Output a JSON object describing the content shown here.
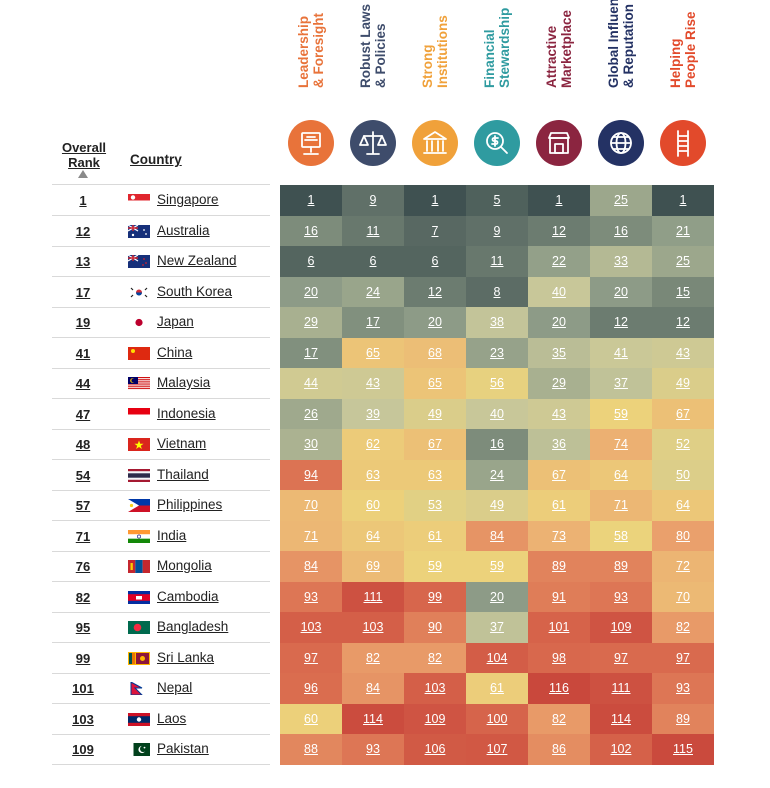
{
  "headers": {
    "rank": "Overall\nRank",
    "country": "Country"
  },
  "pillars": [
    {
      "label": "Leadership\n& Foresight",
      "color": "#e8733a",
      "icon": "leadership-icon"
    },
    {
      "label": "Robust Laws\n& Policies",
      "color": "#3e4c6b",
      "icon": "scales-icon"
    },
    {
      "label": "Strong\nInstitutions",
      "color": "#f0a13a",
      "icon": "institution-building-icon"
    },
    {
      "label": "Financial\nStewardship",
      "color": "#2f9ba0",
      "icon": "money-magnifier-icon"
    },
    {
      "label": "Attractive\nMarketplace",
      "color": "#8b2540",
      "icon": "storefront-icon"
    },
    {
      "label": "Global Influence\n& Reputation",
      "color": "#243264",
      "icon": "globe-icon"
    },
    {
      "label": "Helping\nPeople Rise",
      "color": "#e24a2b",
      "icon": "ladder-icon"
    }
  ],
  "chart_data": {
    "type": "heatmap",
    "columns": [
      "Leadership & Foresight",
      "Robust Laws & Policies",
      "Strong Institutions",
      "Financial Stewardship",
      "Attractive Marketplace",
      "Global Influence & Reputation",
      "Helping People Rise"
    ],
    "rows": [
      {
        "rank": "1",
        "country": "Singapore",
        "flag": "sg",
        "values": [
          1,
          9,
          1,
          5,
          1,
          25,
          1
        ]
      },
      {
        "rank": "12",
        "country": "Australia",
        "flag": "au",
        "values": [
          16,
          11,
          7,
          9,
          12,
          16,
          21
        ]
      },
      {
        "rank": "13",
        "country": "New Zealand",
        "flag": "nz",
        "values": [
          6,
          6,
          6,
          11,
          22,
          33,
          25
        ]
      },
      {
        "rank": "17",
        "country": "South Korea",
        "flag": "kr",
        "values": [
          20,
          24,
          12,
          8,
          40,
          20,
          15
        ]
      },
      {
        "rank": "19",
        "country": "Japan",
        "flag": "jp",
        "values": [
          29,
          17,
          20,
          38,
          20,
          12,
          12
        ]
      },
      {
        "rank": "41",
        "country": "China",
        "flag": "cn",
        "values": [
          17,
          65,
          68,
          23,
          35,
          41,
          43
        ]
      },
      {
        "rank": "44",
        "country": "Malaysia",
        "flag": "my",
        "values": [
          44,
          43,
          65,
          56,
          29,
          37,
          49
        ]
      },
      {
        "rank": "47",
        "country": "Indonesia",
        "flag": "id",
        "values": [
          26,
          39,
          49,
          40,
          43,
          59,
          67
        ]
      },
      {
        "rank": "48",
        "country": "Vietnam",
        "flag": "vn",
        "values": [
          30,
          62,
          67,
          16,
          36,
          74,
          52
        ]
      },
      {
        "rank": "54",
        "country": "Thailand",
        "flag": "th",
        "values": [
          94,
          63,
          63,
          24,
          67,
          64,
          50
        ]
      },
      {
        "rank": "57",
        "country": "Philippines",
        "flag": "ph",
        "values": [
          70,
          60,
          53,
          49,
          61,
          71,
          64
        ]
      },
      {
        "rank": "71",
        "country": "India",
        "flag": "in",
        "values": [
          71,
          64,
          61,
          84,
          73,
          58,
          80
        ]
      },
      {
        "rank": "76",
        "country": "Mongolia",
        "flag": "mn",
        "values": [
          84,
          69,
          59,
          59,
          89,
          89,
          72
        ]
      },
      {
        "rank": "82",
        "country": "Cambodia",
        "flag": "kh",
        "values": [
          93,
          111,
          99,
          20,
          91,
          93,
          70
        ]
      },
      {
        "rank": "95",
        "country": "Bangladesh",
        "flag": "bd",
        "values": [
          103,
          103,
          90,
          37,
          101,
          109,
          82
        ]
      },
      {
        "rank": "99",
        "country": "Sri Lanka",
        "flag": "lk",
        "values": [
          97,
          82,
          82,
          104,
          98,
          97,
          97
        ]
      },
      {
        "rank": "101",
        "country": "Nepal",
        "flag": "np",
        "values": [
          96,
          84,
          103,
          61,
          116,
          111,
          93
        ]
      },
      {
        "rank": "103",
        "country": "Laos",
        "flag": "la",
        "values": [
          60,
          114,
          109,
          100,
          82,
          114,
          89
        ]
      },
      {
        "rank": "109",
        "country": "Pakistan",
        "flag": "pk",
        "values": [
          88,
          93,
          106,
          107,
          86,
          102,
          115
        ]
      }
    ],
    "color_scale": [
      "#3f5151",
      "#8e9c87",
      "#c7c79a",
      "#ecd37b",
      "#eca870",
      "#d96a4e",
      "#c9483c"
    ]
  }
}
